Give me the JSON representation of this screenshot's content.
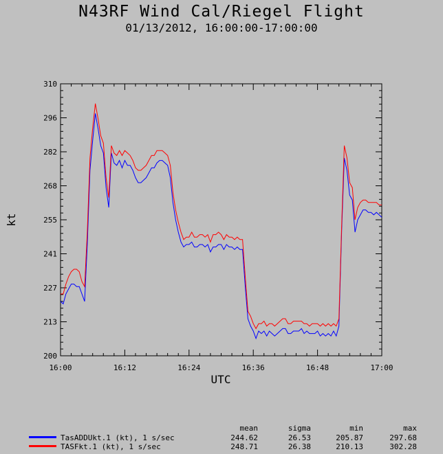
{
  "chart_data": {
    "type": "line",
    "title": "N43RF Wind Cal/Riegel Flight",
    "subtitle": "01/13/2012, 16:00:00-17:00:00",
    "xlabel": "UTC",
    "ylabel": "kt",
    "xlim_minutes": [
      0,
      60
    ],
    "ylim": [
      200,
      310
    ],
    "x_ticks": [
      "16:00",
      "16:12",
      "16:24",
      "16:36",
      "16:48",
      "17:00"
    ],
    "y_ticks": [
      200,
      213,
      227,
      241,
      255,
      268,
      282,
      296,
      310
    ],
    "grid": true,
    "legend_position": "bottom",
    "series": [
      {
        "name": "TasADDUkt.1 (kt), 1 s/sec",
        "color": "#0000ff",
        "x_minutes": [
          0,
          0.5,
          1,
          1.5,
          2,
          2.5,
          3,
          3.5,
          4,
          4.5,
          5,
          5.5,
          6,
          6.5,
          7,
          7.5,
          8,
          8.5,
          9,
          9.5,
          10,
          10.5,
          11,
          11.5,
          12,
          12.5,
          13,
          13.5,
          14,
          14.5,
          15,
          15.5,
          16,
          16.5,
          17,
          17.5,
          18,
          18.5,
          19,
          19.5,
          20,
          20.5,
          21,
          21.5,
          22,
          22.5,
          23,
          23.5,
          24,
          24.5,
          25,
          25.5,
          26,
          26.5,
          27,
          27.5,
          28,
          28.5,
          29,
          29.5,
          30,
          30.5,
          31,
          31.5,
          32,
          32.5,
          33,
          33.5,
          34,
          34.5,
          35,
          35.5,
          36,
          36.5,
          37,
          37.5,
          38,
          38.5,
          39,
          39.5,
          40,
          40.5,
          41,
          41.5,
          42,
          42.5,
          43,
          43.5,
          44,
          44.5,
          45,
          45.5,
          46,
          46.5,
          47,
          47.5,
          48,
          48.5,
          49,
          49.5,
          50,
          50.5,
          51,
          51.5,
          52,
          52.5,
          53,
          53.5,
          54,
          54.5,
          55,
          55.5,
          56,
          56.5,
          57,
          57.5,
          58,
          58.5,
          59,
          59.5,
          60
        ],
        "values": [
          222,
          221,
          225,
          227,
          229,
          229,
          228,
          228,
          225,
          222,
          245,
          275,
          287,
          298,
          292,
          285,
          282,
          268,
          260,
          282,
          278,
          277,
          279,
          276,
          279,
          277,
          277,
          275,
          272,
          270,
          270,
          271,
          272,
          274,
          276,
          276,
          278,
          279,
          279,
          278,
          277,
          272,
          262,
          255,
          250,
          246,
          244,
          245,
          245,
          246,
          244,
          244,
          245,
          245,
          244,
          245,
          242,
          244,
          244,
          245,
          245,
          243,
          245,
          244,
          244,
          243,
          244,
          243,
          243,
          228,
          215,
          212,
          210,
          207,
          210,
          209,
          210,
          208,
          210,
          209,
          208,
          209,
          210,
          211,
          211,
          209,
          209,
          210,
          210,
          210,
          211,
          209,
          210,
          209,
          209,
          209,
          210,
          208,
          209,
          208,
          209,
          208,
          210,
          208,
          212,
          250,
          280,
          275,
          265,
          263,
          250,
          255,
          257,
          259,
          259,
          258,
          258,
          257,
          258,
          257,
          256
        ]
      },
      {
        "name": "TASFkt.1 (kt), 1 s/sec",
        "color": "#ff0000",
        "x_minutes": [
          0,
          0.5,
          1,
          1.5,
          2,
          2.5,
          3,
          3.5,
          4,
          4.5,
          5,
          5.5,
          6,
          6.5,
          7,
          7.5,
          8,
          8.5,
          9,
          9.5,
          10,
          10.5,
          11,
          11.5,
          12,
          12.5,
          13,
          13.5,
          14,
          14.5,
          15,
          15.5,
          16,
          16.5,
          17,
          17.5,
          18,
          18.5,
          19,
          19.5,
          20,
          20.5,
          21,
          21.5,
          22,
          22.5,
          23,
          23.5,
          24,
          24.5,
          25,
          25.5,
          26,
          26.5,
          27,
          27.5,
          28,
          28.5,
          29,
          29.5,
          30,
          30.5,
          31,
          31.5,
          32,
          32.5,
          33,
          33.5,
          34,
          34.5,
          35,
          35.5,
          36,
          36.5,
          37,
          37.5,
          38,
          38.5,
          39,
          39.5,
          40,
          40.5,
          41,
          41.5,
          42,
          42.5,
          43,
          43.5,
          44,
          44.5,
          45,
          45.5,
          46,
          46.5,
          47,
          47.5,
          48,
          48.5,
          49,
          49.5,
          50,
          50.5,
          51,
          51.5,
          52,
          52.5,
          53,
          53.5,
          54,
          54.5,
          55,
          55.5,
          56,
          56.5,
          57,
          57.5,
          58,
          58.5,
          59,
          59.5,
          60
        ],
        "values": [
          225,
          225,
          229,
          232,
          234,
          235,
          235,
          234,
          230,
          228,
          250,
          280,
          292,
          302,
          296,
          289,
          286,
          272,
          264,
          285,
          282,
          281,
          283,
          281,
          283,
          282,
          281,
          279,
          276,
          275,
          275,
          276,
          277,
          279,
          281,
          281,
          283,
          283,
          283,
          282,
          281,
          277,
          266,
          259,
          254,
          250,
          247,
          248,
          248,
          250,
          248,
          248,
          249,
          249,
          248,
          249,
          246,
          249,
          249,
          250,
          249,
          247,
          249,
          248,
          248,
          247,
          248,
          247,
          247,
          232,
          218,
          216,
          213,
          211,
          213,
          213,
          214,
          212,
          213,
          213,
          212,
          213,
          214,
          215,
          215,
          213,
          213,
          214,
          214,
          214,
          214,
          213,
          213,
          212,
          213,
          213,
          213,
          212,
          213,
          212,
          213,
          212,
          213,
          212,
          215,
          252,
          285,
          280,
          270,
          268,
          255,
          260,
          262,
          263,
          263,
          262,
          262,
          262,
          262,
          261,
          261
        ]
      }
    ]
  },
  "stats": {
    "headers": [
      "mean",
      "sigma",
      "min",
      "max"
    ],
    "rows": [
      {
        "label": "TasADDUkt.1 (kt), 1 s/sec",
        "color": "#0000ff",
        "values": [
          "244.62",
          "26.53",
          "205.87",
          "297.68"
        ]
      },
      {
        "label": "TASFkt.1 (kt), 1 s/sec",
        "color": "#ff0000",
        "values": [
          "248.71",
          "26.38",
          "210.13",
          "302.28"
        ]
      }
    ]
  }
}
